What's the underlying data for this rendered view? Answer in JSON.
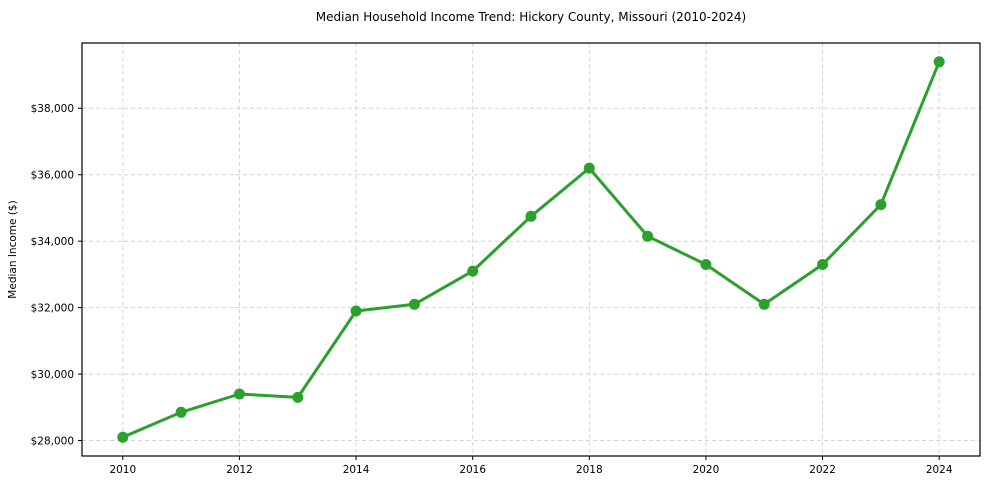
{
  "chart_data": {
    "type": "line",
    "title": "Median Household Income Trend: Hickory County, Missouri (2010-2024)",
    "xlabel": "",
    "ylabel": "Median Income ($)",
    "x": [
      2010,
      2011,
      2012,
      2013,
      2014,
      2015,
      2016,
      2017,
      2018,
      2019,
      2020,
      2021,
      2022,
      2023,
      2024
    ],
    "values": [
      28100,
      28850,
      29400,
      29300,
      31900,
      32100,
      33100,
      34750,
      36200,
      34150,
      33300,
      32100,
      33300,
      35100,
      39400
    ],
    "xtick_values": [
      2010,
      2012,
      2014,
      2016,
      2018,
      2020,
      2022,
      2024
    ],
    "xtick_labels": [
      "2010",
      "2012",
      "2014",
      "2016",
      "2018",
      "2020",
      "2022",
      "2024"
    ],
    "ytick_values": [
      28000,
      30000,
      32000,
      34000,
      36000,
      38000
    ],
    "ytick_labels": [
      "$28,000",
      "$30,000",
      "$32,000",
      "$34,000",
      "$36,000",
      "$38,000"
    ],
    "xlim": [
      2009.3,
      2024.7
    ],
    "ylim": [
      27535,
      39965
    ],
    "grid": "dashed-both-axes",
    "legend": "none",
    "line_color": "#2ca02c",
    "marker": "circle",
    "marker_color": "#2ca02c",
    "background_color": "#ffffff"
  }
}
